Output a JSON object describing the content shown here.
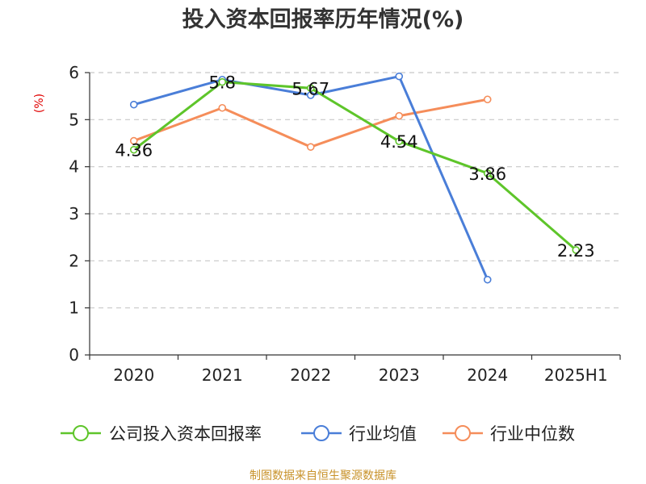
{
  "chart_data": {
    "type": "line",
    "title": "投入资本回报率历年情况(%)",
    "ylabel": "(%)",
    "xlabel": "",
    "categories": [
      "2020",
      "2021",
      "2022",
      "2023",
      "2024",
      "2025H1"
    ],
    "ylim": [
      0,
      6
    ],
    "yticks": [
      0,
      1,
      2,
      3,
      4,
      5,
      6
    ],
    "grid": true,
    "legend_position": "bottom",
    "series": [
      {
        "name": "公司投入资本回报率",
        "color": "#5ec52a",
        "values": [
          4.36,
          5.8,
          5.67,
          4.54,
          3.86,
          2.23
        ],
        "labels": [
          "4.36",
          "5.8",
          "5.67",
          "4.54",
          "3.86",
          "2.23"
        ]
      },
      {
        "name": "行业均值",
        "color": "#4a7ed8",
        "values": [
          5.32,
          5.85,
          5.52,
          5.92,
          1.6,
          null
        ]
      },
      {
        "name": "行业中位数",
        "color": "#f58d5a",
        "values": [
          4.55,
          5.25,
          4.42,
          5.08,
          5.43,
          null
        ]
      }
    ]
  },
  "source": "制图数据来自恒生聚源数据库"
}
